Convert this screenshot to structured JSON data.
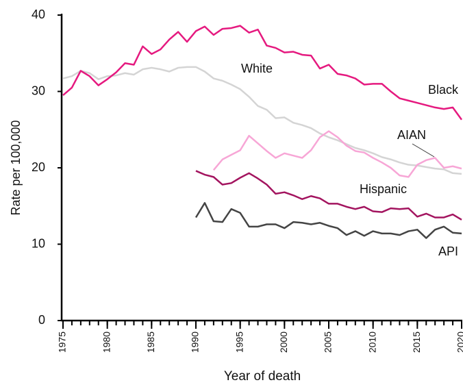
{
  "chart_data": {
    "type": "line",
    "x_label": "Year of death",
    "y_label": "Rate per 100,000",
    "x": [
      1975,
      1976,
      1977,
      1978,
      1979,
      1980,
      1981,
      1982,
      1983,
      1984,
      1985,
      1986,
      1987,
      1988,
      1989,
      1990,
      1991,
      1992,
      1993,
      1994,
      1995,
      1996,
      1997,
      1998,
      1999,
      2000,
      2001,
      2002,
      2003,
      2004,
      2005,
      2006,
      2007,
      2008,
      2009,
      2010,
      2011,
      2012,
      2013,
      2014,
      2015,
      2016,
      2017,
      2018,
      2019,
      2020
    ],
    "xlim": [
      1975,
      2020
    ],
    "xticks": [
      1975,
      1980,
      1985,
      1990,
      1995,
      2000,
      2005,
      2010,
      2015,
      2020
    ],
    "ylim": [
      0,
      40
    ],
    "yticks": [
      0,
      10,
      20,
      30,
      40
    ],
    "grid": false,
    "series": [
      {
        "name": "White",
        "color": "#d4d4d4",
        "values": [
          31.7,
          32.0,
          32.7,
          32.4,
          31.6,
          32.0,
          32.1,
          32.4,
          32.2,
          32.9,
          33.1,
          32.9,
          32.6,
          33.1,
          33.2,
          33.2,
          32.6,
          31.7,
          31.4,
          30.9,
          30.3,
          29.3,
          28.1,
          27.6,
          26.5,
          26.6,
          25.9,
          25.6,
          25.2,
          24.5,
          24.0,
          23.6,
          23.1,
          22.6,
          22.3,
          21.9,
          21.4,
          21.1,
          20.7,
          20.4,
          20.3,
          20.1,
          19.9,
          19.8,
          19.3,
          19.2
        ]
      },
      {
        "name": "Black",
        "color": "#e5197f",
        "values": [
          29.5,
          30.5,
          32.7,
          32.0,
          30.8,
          31.6,
          32.5,
          33.7,
          33.5,
          35.9,
          34.9,
          35.5,
          36.8,
          37.8,
          36.5,
          37.9,
          38.5,
          37.4,
          38.2,
          38.3,
          38.6,
          37.7,
          38.1,
          36.0,
          35.7,
          35.1,
          35.2,
          34.8,
          34.7,
          33.0,
          33.5,
          32.3,
          32.1,
          31.7,
          30.9,
          31.0,
          31.0,
          30.0,
          29.1,
          28.8,
          28.5,
          28.2,
          27.9,
          27.7,
          27.9,
          26.3
        ]
      },
      {
        "name": "AIAN",
        "color": "#f7a6d6",
        "values": [
          null,
          null,
          null,
          null,
          null,
          null,
          null,
          null,
          null,
          null,
          null,
          null,
          null,
          null,
          null,
          null,
          null,
          19.7,
          21.1,
          21.7,
          22.3,
          24.2,
          23.2,
          22.2,
          21.3,
          21.9,
          21.6,
          21.3,
          22.3,
          24.0,
          24.8,
          24.0,
          22.9,
          22.2,
          22.0,
          21.3,
          20.7,
          20.0,
          19.0,
          18.8,
          20.4,
          21.0,
          21.3,
          20.0,
          20.2,
          19.9
        ]
      },
      {
        "name": "Hispanic",
        "color": "#a3145f",
        "values": [
          null,
          null,
          null,
          null,
          null,
          null,
          null,
          null,
          null,
          null,
          null,
          null,
          null,
          null,
          null,
          19.6,
          19.1,
          18.8,
          17.8,
          18.0,
          18.7,
          19.3,
          18.6,
          17.8,
          16.6,
          16.8,
          16.4,
          15.9,
          16.3,
          16.0,
          15.3,
          15.3,
          14.9,
          14.6,
          14.9,
          14.3,
          14.2,
          14.7,
          14.6,
          14.7,
          13.6,
          14.0,
          13.5,
          13.5,
          13.9,
          13.2
        ]
      },
      {
        "name": "API",
        "color": "#444444",
        "values": [
          null,
          null,
          null,
          null,
          null,
          null,
          null,
          null,
          null,
          null,
          null,
          null,
          null,
          null,
          null,
          13.5,
          15.4,
          13.0,
          12.9,
          14.6,
          14.1,
          12.3,
          12.3,
          12.6,
          12.6,
          12.1,
          12.9,
          12.8,
          12.6,
          12.8,
          12.4,
          12.1,
          11.2,
          11.7,
          11.1,
          11.7,
          11.4,
          11.4,
          11.2,
          11.7,
          11.9,
          10.8,
          11.9,
          12.3,
          11.5,
          11.4
        ]
      }
    ]
  }
}
